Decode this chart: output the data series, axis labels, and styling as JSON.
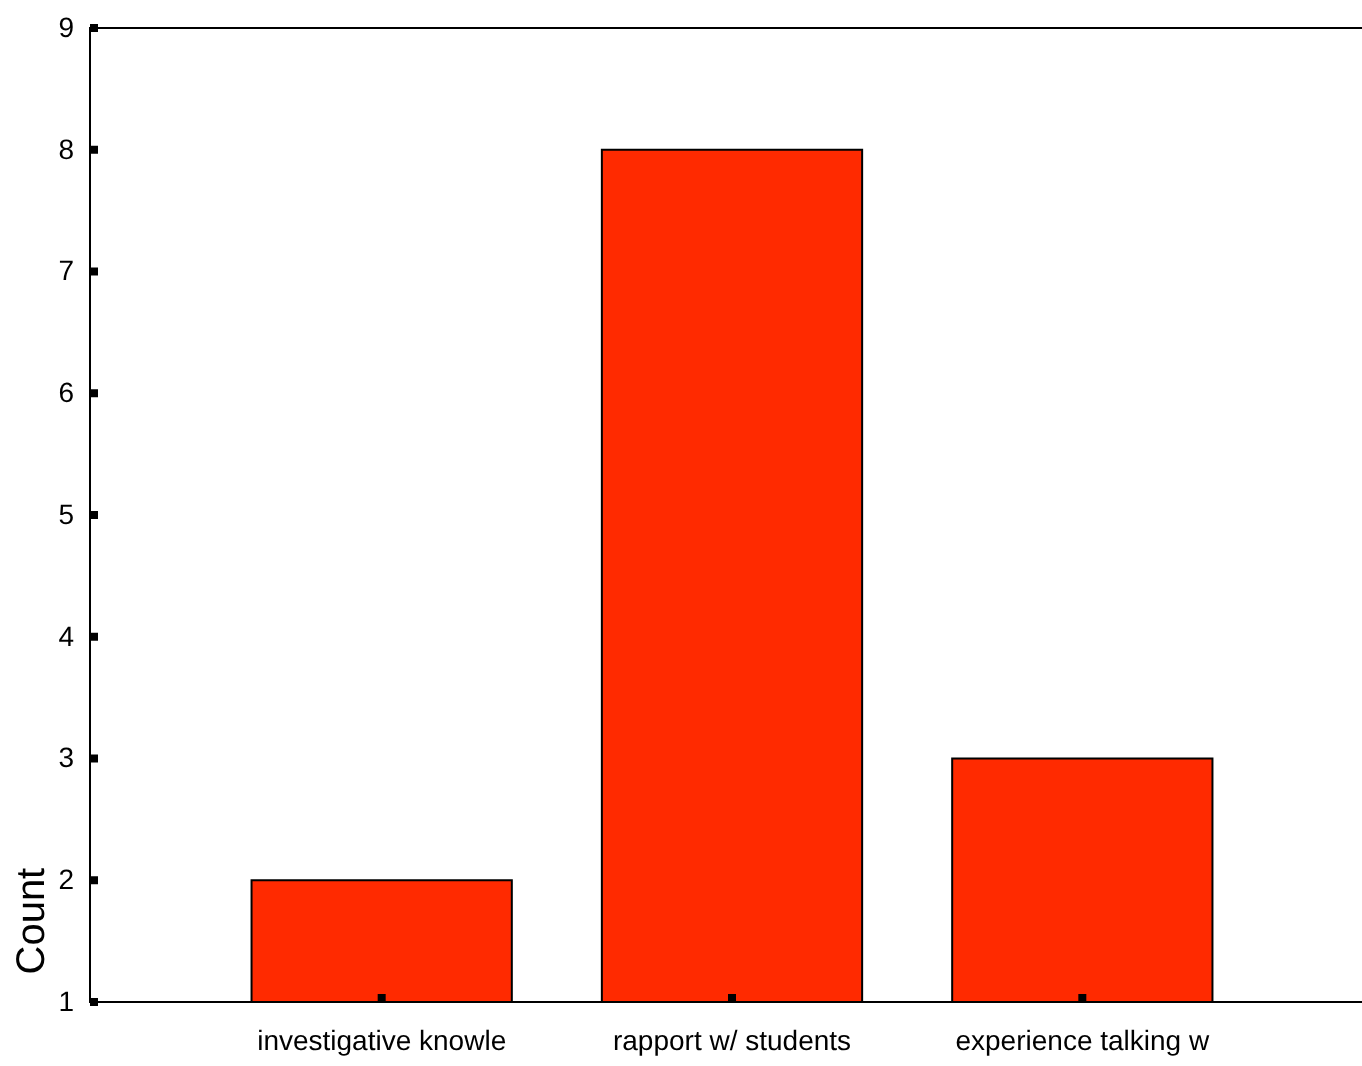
{
  "chart_data": {
    "type": "bar",
    "ylabel": "Count",
    "categories": [
      "investigative knowle",
      "rapport w/ students",
      "experience talking w"
    ],
    "values": [
      2,
      8,
      3
    ],
    "color": "#ff2a00",
    "ylim": [
      1,
      9
    ],
    "yticks": [
      1,
      2,
      3,
      4,
      5,
      6,
      7,
      8,
      9
    ],
    "grid": false
  }
}
